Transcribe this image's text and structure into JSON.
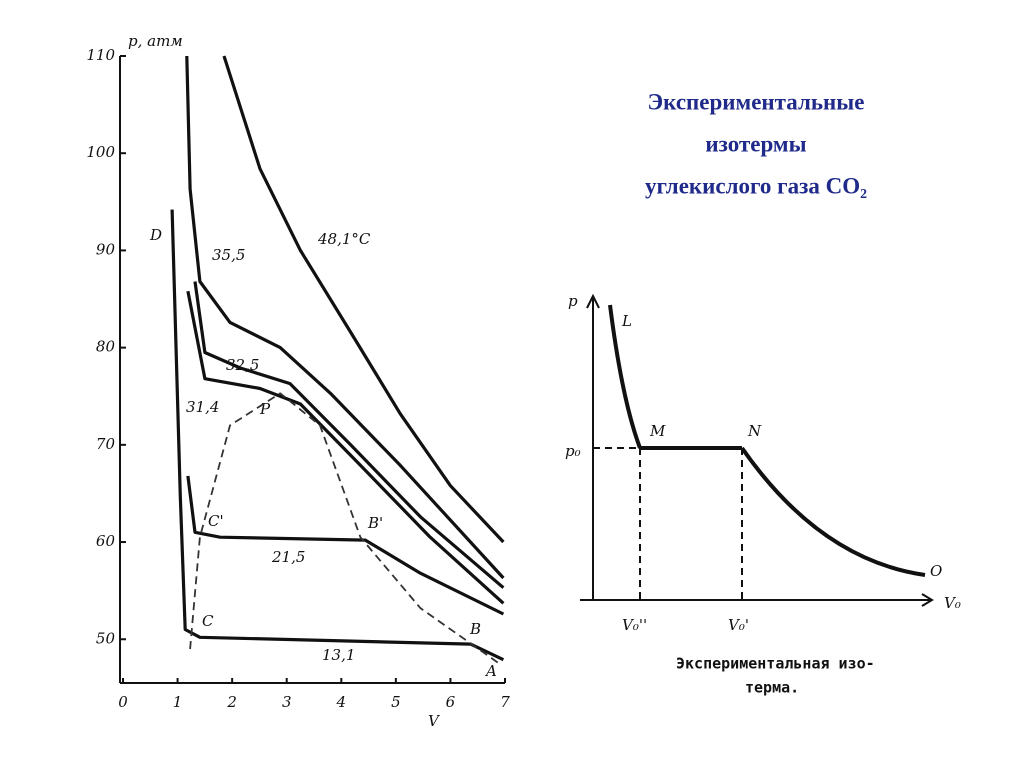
{
  "title_lines": [
    "Экспериментальные",
    "изотермы",
    "углекислого газа CO₂"
  ],
  "chart_data": {
    "type": "line",
    "ylabel": "p, атм",
    "xlabel": "V",
    "xlim": [
      0,
      7
    ],
    "ylim": [
      45.5,
      110
    ],
    "xticks": [
      0,
      1,
      2,
      3,
      4,
      5,
      6,
      7
    ],
    "yticks": [
      50,
      60,
      70,
      80,
      90,
      100,
      110
    ],
    "series": [
      {
        "name": "48,1°C",
        "color": "#111111",
        "x": [
          1.85,
          2.51,
          3.25,
          4.17,
          5.08,
          6.0,
          6.97
        ],
        "values": [
          110,
          98.4,
          90,
          81.6,
          73.2,
          65.8,
          60
        ]
      },
      {
        "name": "35,5",
        "color": "#111111",
        "x": [
          1.17,
          1.23,
          1.41,
          1.96,
          2.88,
          3.8,
          5.08,
          6.97
        ],
        "values": [
          110,
          96.3,
          86.8,
          82.6,
          80,
          75.3,
          67.9,
          56.3
        ]
      },
      {
        "name": "32,5",
        "color": "#111111",
        "x": [
          1.32,
          1.5,
          2.15,
          3.06,
          4.17,
          5.45,
          6.97
        ],
        "values": [
          86.8,
          79.5,
          77.9,
          76.3,
          70,
          62.6,
          55.3
        ]
      },
      {
        "name": "31,4",
        "color": "#111111",
        "x": [
          1.19,
          1.5,
          2.51,
          3.25,
          4.35,
          5.63,
          6.97
        ],
        "values": [
          85.8,
          76.8,
          75.8,
          74.2,
          67.9,
          60.5,
          53.7
        ]
      },
      {
        "name": "21,5",
        "color": "#111111",
        "x": [
          1.19,
          1.32,
          1.78,
          4.44,
          5.45,
          6.97
        ],
        "values": [
          66.8,
          61,
          60.5,
          60.2,
          56.8,
          52.6
        ]
      },
      {
        "name": "13,1",
        "color": "#111111",
        "x": [
          0.9,
          1.05,
          1.14,
          1.41,
          6.37,
          6.97
        ],
        "values": [
          94.2,
          64.7,
          51,
          50.2,
          49.5,
          47.9
        ]
      },
      {
        "color": "#333333",
        "dashed": true,
        "x": [
          1.23,
          1.41,
          1.96,
          2.88,
          3.61,
          4.35,
          5.45,
          6.92
        ],
        "values": [
          49,
          60.5,
          72,
          75.3,
          72,
          60.5,
          53.2,
          47.4
        ]
      }
    ],
    "annotations": [
      "D",
      "P",
      "C'",
      "B'",
      "C",
      "B",
      "A"
    ]
  },
  "diagram": {
    "p_axis": "p",
    "v_axis": "V₀",
    "L": "L",
    "M": "M",
    "N": "N",
    "O": "O",
    "p0": "p₀",
    "v0_2": "V₀''",
    "v0_1": "V₀'",
    "caption": [
      "Экспериментальная изо-",
      "терма."
    ]
  }
}
